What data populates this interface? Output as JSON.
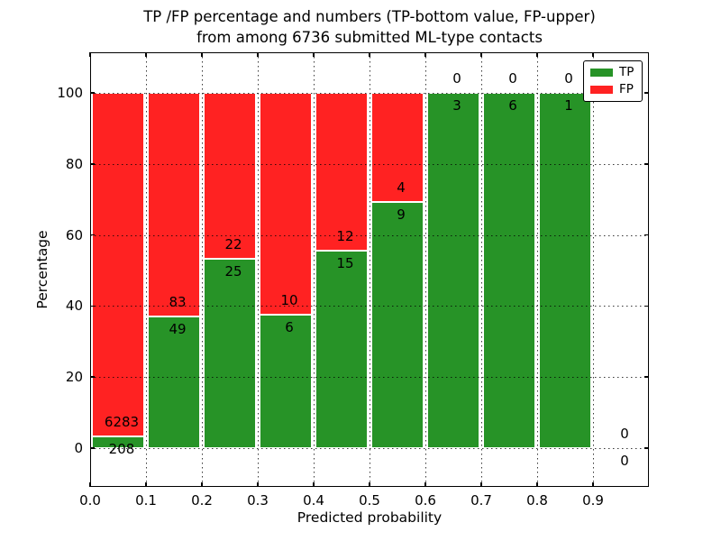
{
  "chart_data": {
    "type": "bar",
    "stacked": true,
    "orientation": "vertical",
    "title": "TP /FP percentage and numbers (TP-bottom value, FP-upper)",
    "subtitle": "from among 6736 submitted ML-type contacts",
    "xlabel": "Predicted probability",
    "ylabel": "Percentage",
    "total_contacts": 6736,
    "categories": [
      "0.0-0.1",
      "0.1-0.2",
      "0.2-0.3",
      "0.3-0.4",
      "0.4-0.5",
      "0.5-0.6",
      "0.6-0.7",
      "0.7-0.8",
      "0.8-0.9",
      "0.9-1.0"
    ],
    "series": [
      {
        "name": "TP",
        "color": "#279327",
        "values": [
          208,
          49,
          25,
          6,
          15,
          9,
          3,
          6,
          1,
          0
        ]
      },
      {
        "name": "FP",
        "color": "#ff2222",
        "values": [
          6283,
          83,
          22,
          10,
          12,
          4,
          0,
          0,
          0,
          0
        ]
      }
    ],
    "value_semantics": "bar heights are per-bin percentage split TP/(TP+FP); annotations show raw counts (TP below boundary, FP above)",
    "xticks": [
      "0.0",
      "0.1",
      "0.2",
      "0.3",
      "0.4",
      "0.5",
      "0.6",
      "0.7",
      "0.8",
      "0.9"
    ],
    "yticks": [
      0,
      20,
      40,
      60,
      80,
      100
    ],
    "xlim": [
      0.0,
      1.0
    ],
    "ylim": [
      -11,
      111.5
    ],
    "grid": "dotted, drawn over bars",
    "legend_position": "upper right",
    "bar_edge_color": "#ffffff",
    "text_color": "#000000",
    "background_color": "#ffffff"
  }
}
